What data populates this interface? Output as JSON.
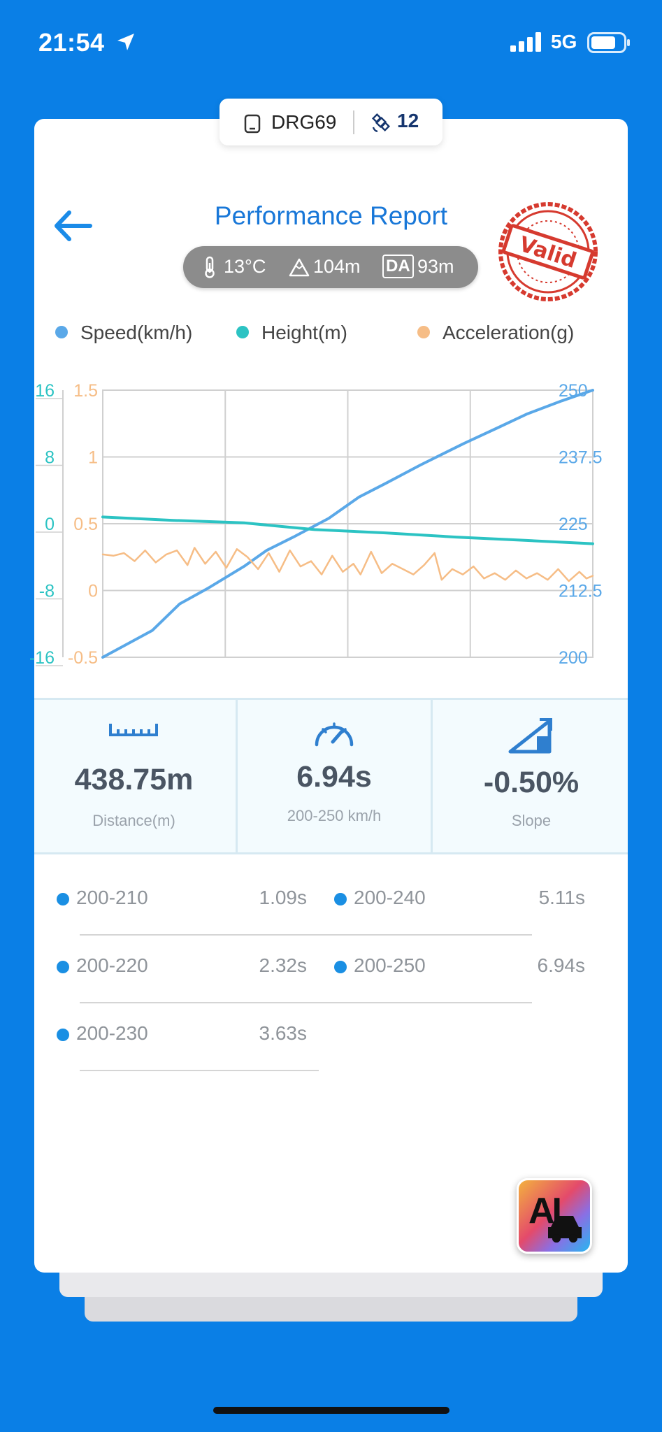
{
  "status_bar": {
    "time": "21:54",
    "network": "5G"
  },
  "device": {
    "name": "DRG69",
    "satellites": "12"
  },
  "header": {
    "title": "Performance Report",
    "stamp_text": "Valid"
  },
  "conditions": {
    "temperature": "13°C",
    "altitude": "104m",
    "da_label": "DA",
    "density_altitude": "93m"
  },
  "legend": {
    "speed": "Speed(km/h)",
    "height": "Height(m)",
    "acceleration": "Acceleration(g)"
  },
  "colors": {
    "speed": "#5aa8e8",
    "height": "#2cc3c3",
    "acceleration": "#f6bd86",
    "accent": "#1877d8"
  },
  "chart_data": {
    "type": "line",
    "x_range": [
      0,
      6.94
    ],
    "axes": {
      "height": {
        "ticks": [
          "16",
          "8",
          "0",
          "-8",
          "-16"
        ],
        "ylim": [
          -16,
          16
        ]
      },
      "acceleration": {
        "ticks": [
          "1.5",
          "1",
          "0.5",
          "0",
          "-0.5"
        ],
        "ylim": [
          -0.5,
          1.5
        ]
      },
      "speed": {
        "ticks": [
          "250",
          "237.5",
          "225",
          "212.5",
          "200"
        ],
        "ylim": [
          200,
          250
        ]
      }
    },
    "grid": true,
    "series": [
      {
        "name": "Speed(km/h)",
        "axis": "speed",
        "points": [
          [
            0,
            200
          ],
          [
            0.35,
            202.5
          ],
          [
            0.7,
            205
          ],
          [
            1.09,
            210
          ],
          [
            1.5,
            213
          ],
          [
            2.0,
            217
          ],
          [
            2.32,
            220
          ],
          [
            2.7,
            222.5
          ],
          [
            3.2,
            226
          ],
          [
            3.63,
            230
          ],
          [
            4.0,
            232.5
          ],
          [
            4.5,
            236
          ],
          [
            5.11,
            240
          ],
          [
            5.6,
            243
          ],
          [
            6.0,
            245.5
          ],
          [
            6.5,
            248
          ],
          [
            6.94,
            250
          ]
        ]
      },
      {
        "name": "Height(m)",
        "axis": "height",
        "points": [
          [
            0,
            0.8
          ],
          [
            1.0,
            0.4
          ],
          [
            2.0,
            0.1
          ],
          [
            3.0,
            -0.7
          ],
          [
            4.0,
            -1.1
          ],
          [
            5.0,
            -1.6
          ],
          [
            6.0,
            -2.0
          ],
          [
            6.94,
            -2.4
          ]
        ]
      },
      {
        "name": "Acceleration(g)",
        "axis": "acceleration",
        "points": [
          [
            0,
            0.27
          ],
          [
            0.15,
            0.26
          ],
          [
            0.3,
            0.28
          ],
          [
            0.45,
            0.22
          ],
          [
            0.6,
            0.3
          ],
          [
            0.75,
            0.21
          ],
          [
            0.9,
            0.27
          ],
          [
            1.05,
            0.3
          ],
          [
            1.2,
            0.19
          ],
          [
            1.3,
            0.32
          ],
          [
            1.45,
            0.2
          ],
          [
            1.6,
            0.29
          ],
          [
            1.75,
            0.17
          ],
          [
            1.9,
            0.31
          ],
          [
            2.05,
            0.25
          ],
          [
            2.2,
            0.16
          ],
          [
            2.35,
            0.28
          ],
          [
            2.5,
            0.14
          ],
          [
            2.65,
            0.3
          ],
          [
            2.8,
            0.18
          ],
          [
            2.95,
            0.22
          ],
          [
            3.1,
            0.12
          ],
          [
            3.25,
            0.26
          ],
          [
            3.4,
            0.14
          ],
          [
            3.55,
            0.2
          ],
          [
            3.65,
            0.12
          ],
          [
            3.8,
            0.29
          ],
          [
            3.95,
            0.13
          ],
          [
            4.1,
            0.2
          ],
          [
            4.25,
            0.16
          ],
          [
            4.4,
            0.12
          ],
          [
            4.55,
            0.19
          ],
          [
            4.7,
            0.28
          ],
          [
            4.8,
            0.08
          ],
          [
            4.95,
            0.16
          ],
          [
            5.1,
            0.12
          ],
          [
            5.25,
            0.18
          ],
          [
            5.4,
            0.09
          ],
          [
            5.55,
            0.13
          ],
          [
            5.7,
            0.08
          ],
          [
            5.85,
            0.15
          ],
          [
            6.0,
            0.09
          ],
          [
            6.15,
            0.13
          ],
          [
            6.3,
            0.08
          ],
          [
            6.45,
            0.16
          ],
          [
            6.6,
            0.07
          ],
          [
            6.75,
            0.14
          ],
          [
            6.85,
            0.09
          ],
          [
            6.94,
            0.11
          ]
        ]
      }
    ]
  },
  "stats": [
    {
      "value": "438.75m",
      "label": "Distance(m)",
      "icon": "ruler-icon"
    },
    {
      "value": "6.94s",
      "label": "200-250 km/h",
      "icon": "speedometer-icon"
    },
    {
      "value": "-0.50%",
      "label": "Slope",
      "icon": "slope-icon"
    }
  ],
  "splits": [
    {
      "range": "200-210",
      "time": "1.09s"
    },
    {
      "range": "200-240",
      "time": "5.11s"
    },
    {
      "range": "200-220",
      "time": "2.32s"
    },
    {
      "range": "200-250",
      "time": "6.94s"
    },
    {
      "range": "200-230",
      "time": "3.63s"
    }
  ],
  "ai_button": {
    "label": "AI"
  }
}
